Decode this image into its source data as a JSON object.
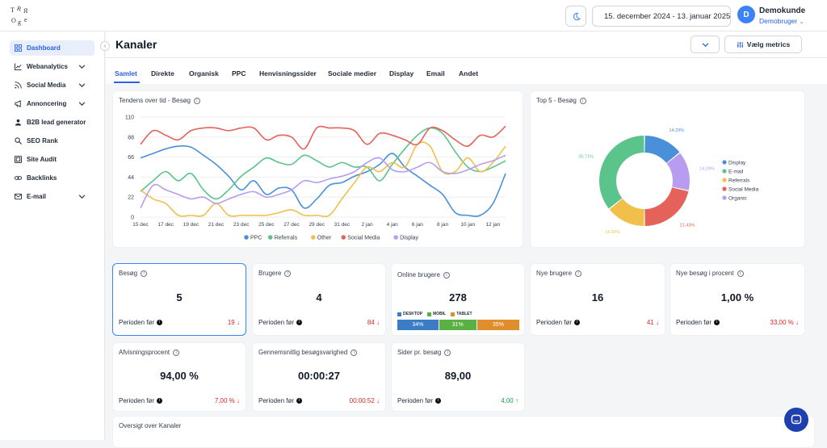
{
  "header": {
    "date_range": "15. december 2024 - 13. januar 2025",
    "avatar_initial": "D",
    "user_name": "Demokunde",
    "user_role": "Demobruger"
  },
  "sidebar": {
    "items": [
      {
        "label": "Dashboard",
        "icon": "grid-icon"
      },
      {
        "label": "Webanalytics",
        "icon": "chart-icon"
      },
      {
        "label": "Social Media",
        "icon": "rss-icon"
      },
      {
        "label": "Annoncering",
        "icon": "megaphone-icon"
      },
      {
        "label": "B2B lead generator",
        "icon": "people-icon"
      },
      {
        "label": "SEO Rank",
        "icon": "search-icon"
      },
      {
        "label": "Site Audit",
        "icon": "audit-icon"
      },
      {
        "label": "Backlinks",
        "icon": "link-icon"
      },
      {
        "label": "E-mail",
        "icon": "mail-icon"
      }
    ]
  },
  "page": {
    "title": "Kanaler",
    "metrics_button": "Vælg metrics"
  },
  "tabs": [
    "Samlet",
    "Direkte",
    "Organisk",
    "PPC",
    "Henvisningssider",
    "Sociale medier",
    "Display",
    "Email",
    "Andet"
  ],
  "trend_card": {
    "title": "Tendens over tid - Besøg"
  },
  "donut_card": {
    "title": "Top 5 - Besøg"
  },
  "chart_data": [
    {
      "type": "line",
      "title": "Tendens over tid - Besøg",
      "x": [
        "15 dec",
        "16 dec",
        "17 dec",
        "18 dec",
        "19 dec",
        "20 dec",
        "21 dec",
        "22 dec",
        "23 dec",
        "24 dec",
        "25 dec",
        "26 dec",
        "27 dec",
        "28 dec",
        "29 dec",
        "30 dec",
        "31 dec",
        "1 jan",
        "2 jan",
        "3 jan",
        "4 jan",
        "5 jan",
        "6 jan",
        "7 jan",
        "8 jan",
        "9 jan",
        "10 jan",
        "11 jan",
        "12 jan",
        "13 jan"
      ],
      "x_tick_labels": [
        "15 dec",
        "17 dec",
        "19 dec",
        "21 dec",
        "23 dec",
        "25 dec",
        "27 dec",
        "29 dec",
        "31 dec",
        "2 jan",
        "4 jan",
        "6 jan",
        "8 jan",
        "10 jan",
        "12 jan"
      ],
      "ylim": [
        0,
        110
      ],
      "yticks": [
        0,
        22,
        44,
        66,
        88,
        110
      ],
      "legend_position": "bottom",
      "series": [
        {
          "name": "PPC",
          "color": "#4a90d9",
          "values": [
            65,
            70,
            75,
            78,
            77,
            68,
            58,
            45,
            30,
            40,
            25,
            32,
            30,
            10,
            20,
            35,
            38,
            45,
            50,
            58,
            70,
            55,
            45,
            35,
            25,
            5,
            2,
            2,
            15,
            48
          ]
        },
        {
          "name": "Referrals",
          "color": "#5bc48a",
          "values": [
            28,
            40,
            50,
            40,
            48,
            30,
            20,
            30,
            45,
            55,
            65,
            60,
            58,
            68,
            62,
            55,
            60,
            55,
            55,
            40,
            58,
            75,
            90,
            98,
            92,
            72,
            55,
            50,
            55,
            62
          ]
        },
        {
          "name": "Other",
          "color": "#f0c04a",
          "values": [
            30,
            20,
            15,
            2,
            2,
            2,
            15,
            2,
            2,
            2,
            2,
            5,
            8,
            2,
            2,
            2,
            20,
            38,
            55,
            50,
            60,
            55,
            80,
            78,
            50,
            50,
            65,
            50,
            60,
            78
          ]
        },
        {
          "name": "Social Media",
          "color": "#e5625a",
          "values": [
            80,
            95,
            90,
            85,
            95,
            98,
            98,
            95,
            98,
            98,
            85,
            90,
            88,
            75,
            98,
            98,
            98,
            95,
            80,
            92,
            90,
            85,
            80,
            98,
            95,
            85,
            78,
            90,
            88,
            100
          ]
        },
        {
          "name": "Display",
          "color": "#b79cf0",
          "values": [
            10,
            35,
            30,
            25,
            20,
            22,
            15,
            20,
            25,
            28,
            22,
            25,
            30,
            40,
            38,
            42,
            45,
            50,
            60,
            65,
            52,
            50,
            55,
            60,
            50,
            48,
            52,
            58,
            62,
            68
          ]
        }
      ]
    },
    {
      "type": "pie",
      "title": "Top 5 - Besøg",
      "legend_position": "right",
      "slices": [
        {
          "label": "Display",
          "value": 14.29,
          "text": "14.29%",
          "color": "#4a90d9"
        },
        {
          "label": "Organic",
          "value": 14.29,
          "text": "14.29%",
          "color": "#b79cf0"
        },
        {
          "label": "Social Media",
          "value": 21.43,
          "text": "21.43%",
          "color": "#e5625a"
        },
        {
          "label": "Referrals",
          "value": 14.29,
          "text": "14.29%",
          "color": "#f0c04a"
        },
        {
          "label": "E-mail",
          "value": 35.71,
          "text": "35.71%",
          "color": "#5bc48a"
        }
      ],
      "legend_order": [
        "Display",
        "E-mail",
        "Referrals",
        "Social Media",
        "Organic"
      ]
    }
  ],
  "kpis": [
    {
      "title": "Besøg",
      "value": "5",
      "prev_label": "Perioden før",
      "delta": "19",
      "dir": "down"
    },
    {
      "title": "Brugere",
      "value": "4",
      "prev_label": "Perioden før",
      "delta": "84",
      "dir": "down"
    },
    {
      "title": "Online brugere",
      "value": "278",
      "devices": [
        {
          "label": "DESKTOP",
          "pct": "34%",
          "value": 34,
          "color": "#3b7dc4"
        },
        {
          "label": "MOBIL",
          "pct": "31%",
          "value": 31,
          "color": "#5bb043"
        },
        {
          "label": "TABLET",
          "pct": "35%",
          "value": 35,
          "color": "#e08e2b"
        }
      ]
    },
    {
      "title": "Nye brugere",
      "value": "16",
      "prev_label": "Perioden før",
      "delta": "41",
      "dir": "down"
    },
    {
      "title": "Nye besøg i procent",
      "value": "1,00 %",
      "prev_label": "Perioden før",
      "delta": "33,00 %",
      "dir": "down"
    },
    {
      "title": "Afvisningsprocent",
      "value": "94,00 %",
      "prev_label": "Perioden før",
      "delta": "7,00 %",
      "dir": "down"
    },
    {
      "title": "Gennemsnitlig besøgsvarighed",
      "value": "00:00:27",
      "prev_label": "Perioden før",
      "delta": "00:00:52",
      "dir": "down"
    },
    {
      "title": "Sider pr. besøg",
      "value": "89,00",
      "prev_label": "Perioden før",
      "delta": "4,00",
      "dir": "up"
    }
  ],
  "overview": {
    "title": "Oversigt over Kanaler"
  }
}
